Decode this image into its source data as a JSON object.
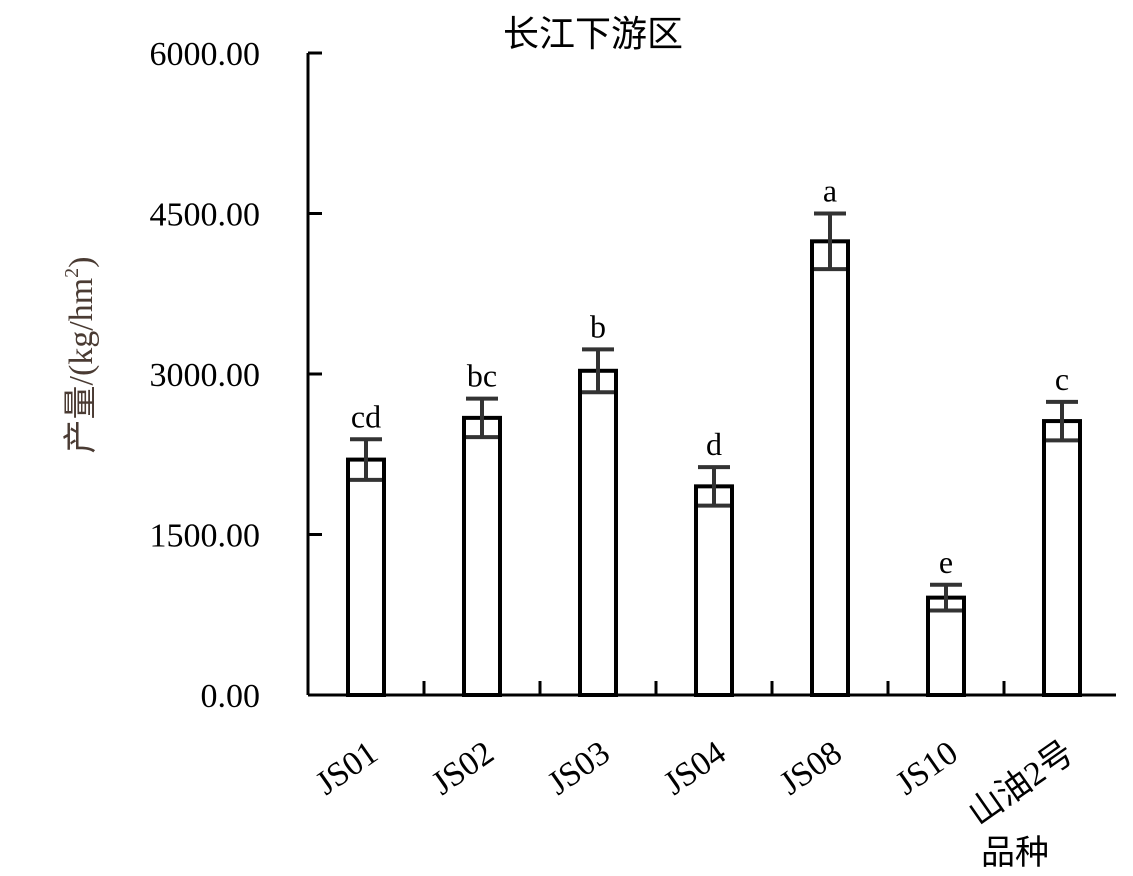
{
  "chart_data": {
    "type": "bar",
    "title": "长江下游区",
    "xlabel": "品种",
    "ylabel": "产量/(kg/hm²)",
    "ylabel_base": "产量/(kg/hm",
    "ylabel_sup": "2",
    "ylabel_close": ")",
    "categories": [
      "JS01",
      "JS02",
      "JS03",
      "JS04",
      "JS08",
      "JS10",
      "山油2号"
    ],
    "values": [
      2200,
      2590,
      3030,
      1950,
      4240,
      910,
      2560
    ],
    "errors": [
      190,
      180,
      200,
      180,
      260,
      120,
      180
    ],
    "significance": [
      "cd",
      "bc",
      "b",
      "d",
      "a",
      "e",
      "c"
    ],
    "ylim": [
      0,
      6000
    ],
    "yticks": [
      0,
      1500,
      3000,
      4500,
      6000
    ],
    "ytick_labels": [
      "0.00",
      "1500.00",
      "3000.00",
      "4500.00",
      "6000.00"
    ],
    "grid": false,
    "legend": "none",
    "bar_fill": "#ffffff",
    "bar_stroke": "#000000",
    "error_color": "#333333"
  }
}
